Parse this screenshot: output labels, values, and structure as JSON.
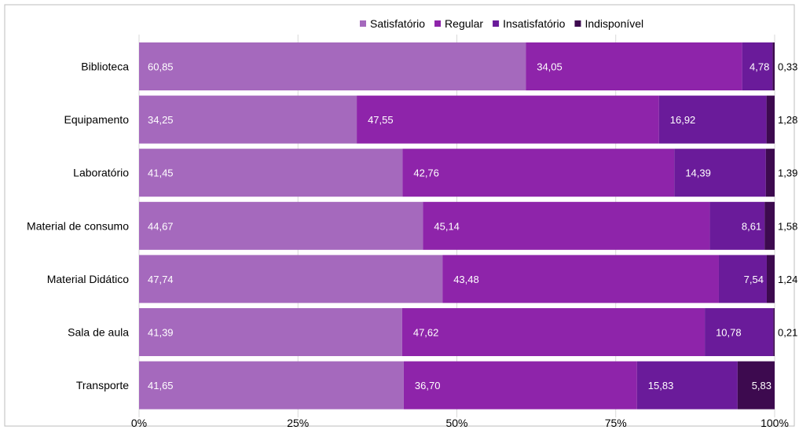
{
  "chart_data": {
    "type": "bar",
    "orientation": "horizontal",
    "stacked": true,
    "normalized": true,
    "categories": [
      "Biblioteca",
      "Equipamento",
      "Laboratório",
      "Material de consumo",
      "Material Didático",
      "Sala de aula",
      "Transporte"
    ],
    "series": [
      {
        "name": "Satisfatório",
        "color": "#a569bd",
        "values": [
          60.85,
          34.25,
          41.45,
          44.67,
          47.74,
          41.39,
          41.65
        ],
        "labels": [
          "60,85",
          "34,25",
          "41,45",
          "44,67",
          "47,74",
          "41,39",
          "41,65"
        ]
      },
      {
        "name": "Regular",
        "color": "#8e24aa",
        "values": [
          34.05,
          47.55,
          42.76,
          45.14,
          43.48,
          47.62,
          36.7
        ],
        "labels": [
          "34,05",
          "47,55",
          "42,76",
          "45,14",
          "43,48",
          "47,62",
          "36,70"
        ]
      },
      {
        "name": "Insatisfatório",
        "color": "#6a1b9a",
        "values": [
          4.78,
          16.92,
          14.39,
          8.61,
          7.54,
          10.78,
          15.83
        ],
        "labels": [
          "4,78",
          "16,92",
          "14,39",
          "8,61",
          "7,54",
          "10,78",
          "15,83"
        ]
      },
      {
        "name": "Indisponível",
        "color": "#3d0a4f",
        "values": [
          0.33,
          1.28,
          1.39,
          1.58,
          1.24,
          0.21,
          5.83
        ],
        "labels": [
          "0,33",
          "1,28",
          "1,39",
          "1,58",
          "1,24",
          "0,21",
          "5,83"
        ]
      }
    ],
    "x_ticks": [
      "0%",
      "25%",
      "50%",
      "75%",
      "100%"
    ],
    "xlim": [
      0,
      100
    ],
    "grid": true,
    "legend_position": "top-right"
  }
}
